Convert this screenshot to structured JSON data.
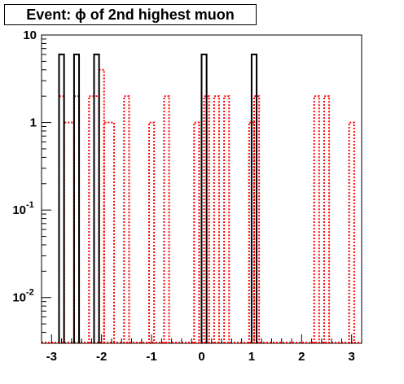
{
  "chart_data": {
    "type": "histogram",
    "title": "Event: ϕ of 2nd highest muon",
    "xlabel": "",
    "ylabel": "",
    "xlim": [
      -3.2,
      3.2
    ],
    "ylim": [
      0.003,
      10
    ],
    "y_scale": "log",
    "grid": false,
    "x_ticks": [
      -3,
      -2,
      -1,
      0,
      1,
      2,
      3
    ],
    "x_tick_labels": [
      "-3",
      "-2",
      "-1",
      "0",
      "1",
      "2",
      "3"
    ],
    "y_ticks": [
      {
        "value": 0.01,
        "base": "10",
        "exp": "-2"
      },
      {
        "value": 0.1,
        "base": "10",
        "exp": "-1"
      },
      {
        "value": 1,
        "label": "1"
      },
      {
        "value": 10,
        "label": "10"
      }
    ],
    "bin_width": 0.1,
    "series": [
      {
        "color": "#000000",
        "style": "solid",
        "bins": [
          {
            "x0": -2.85,
            "x1": -2.75,
            "y": 6
          },
          {
            "x0": -2.55,
            "x1": -2.45,
            "y": 6
          },
          {
            "x0": -2.15,
            "x1": -2.05,
            "y": 6
          },
          {
            "x0": 0.0,
            "x1": 0.1,
            "y": 6
          },
          {
            "x0": 1.0,
            "x1": 1.1,
            "y": 6
          }
        ]
      },
      {
        "color": "#ff0000",
        "style": "dotted",
        "bins": [
          {
            "x0": -2.85,
            "x1": -2.75,
            "y": 2
          },
          {
            "x0": -2.75,
            "x1": -2.55,
            "y": 1
          },
          {
            "x0": -2.55,
            "x1": -2.45,
            "y": 2
          },
          {
            "x0": -2.25,
            "x1": -2.05,
            "y": 2
          },
          {
            "x0": -2.05,
            "x1": -1.95,
            "y": 4
          },
          {
            "x0": -1.95,
            "x1": -1.75,
            "y": 1
          },
          {
            "x0": -1.55,
            "x1": -1.45,
            "y": 2
          },
          {
            "x0": -1.05,
            "x1": -0.95,
            "y": 1
          },
          {
            "x0": -0.75,
            "x1": -0.65,
            "y": 2
          },
          {
            "x0": -0.15,
            "x1": -0.05,
            "y": 1
          },
          {
            "x0": 0.05,
            "x1": 0.15,
            "y": 2
          },
          {
            "x0": 0.25,
            "x1": 0.35,
            "y": 2
          },
          {
            "x0": 0.45,
            "x1": 0.55,
            "y": 2
          },
          {
            "x0": 0.95,
            "x1": 1.05,
            "y": 1
          },
          {
            "x0": 1.05,
            "x1": 1.15,
            "y": 2
          },
          {
            "x0": 2.25,
            "x1": 2.35,
            "y": 2
          },
          {
            "x0": 2.45,
            "x1": 2.55,
            "y": 2
          },
          {
            "x0": 2.95,
            "x1": 3.05,
            "y": 1
          }
        ]
      }
    ]
  }
}
